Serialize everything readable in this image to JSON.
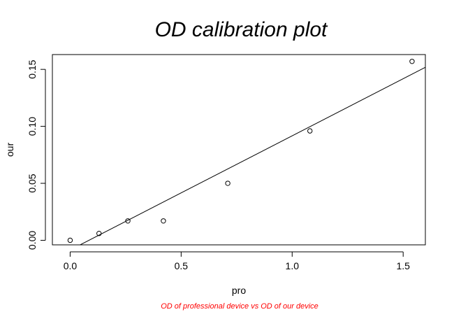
{
  "chart_data": {
    "type": "scatter",
    "title": "OD calibration plot",
    "xlabel": "pro",
    "ylabel": "our",
    "caption": "OD of professional device vs OD of our device",
    "colors": {
      "caption": "#ff0000",
      "points": "#000000",
      "line": "#000000"
    },
    "xlim": [
      -0.08,
      1.6
    ],
    "ylim": [
      -0.004,
      0.163
    ],
    "x_ticks": [
      0.0,
      0.5,
      1.0,
      1.5
    ],
    "x_tick_labels": [
      "0.0",
      "0.5",
      "1.0",
      "1.5"
    ],
    "y_ticks": [
      0.0,
      0.05,
      0.1,
      0.15
    ],
    "y_tick_labels": [
      "0.00",
      "0.05",
      "0.10",
      "0.15"
    ],
    "grid": false,
    "legend": "none",
    "points": [
      {
        "x": 0.0,
        "y": 0.0
      },
      {
        "x": 0.13,
        "y": 0.006
      },
      {
        "x": 0.26,
        "y": 0.017
      },
      {
        "x": 0.42,
        "y": 0.017
      },
      {
        "x": 0.71,
        "y": 0.05
      },
      {
        "x": 1.08,
        "y": 0.096
      },
      {
        "x": 1.54,
        "y": 0.157
      }
    ],
    "fit_line": {
      "slope": 0.1002,
      "intercept": -0.0085
    }
  }
}
